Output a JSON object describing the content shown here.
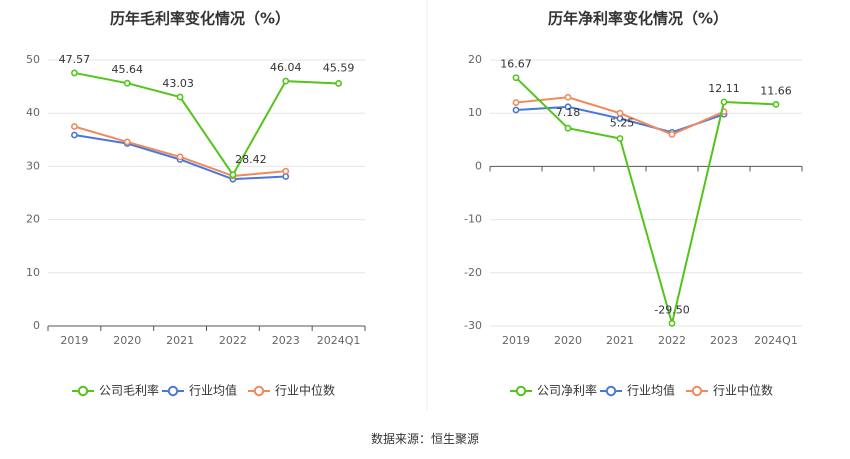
{
  "source_text": "数据来源：恒生聚源",
  "colors": {
    "company": "#52c41a",
    "avg": "#4a78d8",
    "median": "#f08a5d",
    "grid": "#e6e6e6",
    "axis": "#555555"
  },
  "chart_data": [
    {
      "type": "line",
      "title": "历年毛利率变化情况（%）",
      "categories": [
        "2019",
        "2020",
        "2021",
        "2022",
        "2023",
        "2024Q1"
      ],
      "ylim": [
        0,
        50
      ],
      "yticks": [
        0,
        10,
        20,
        30,
        40,
        50
      ],
      "ytick_labels": [
        "0",
        "10",
        "20",
        "30",
        "40",
        "50"
      ],
      "series": [
        {
          "key": "company",
          "name": "公司毛利率",
          "values": [
            47.57,
            45.64,
            43.03,
            28.42,
            46.04,
            45.59
          ],
          "labels": [
            "47.57",
            "45.64",
            "43.03",
            "28.42",
            "46.04",
            "45.59"
          ]
        },
        {
          "key": "avg",
          "name": "行业均值",
          "values": [
            35.9,
            34.3,
            31.3,
            27.6,
            28.1,
            null
          ]
        },
        {
          "key": "median",
          "name": "行业中位数",
          "values": [
            37.5,
            34.6,
            31.8,
            28.2,
            29.1,
            null
          ]
        }
      ]
    },
    {
      "type": "line",
      "title": "历年净利率变化情况（%）",
      "categories": [
        "2019",
        "2020",
        "2021",
        "2022",
        "2023",
        "2024Q1"
      ],
      "ylim": [
        -30,
        20
      ],
      "yticks": [
        -30,
        -20,
        -10,
        0,
        10,
        20
      ],
      "ytick_labels": [
        "-30",
        "-20",
        "-10",
        "0",
        "10",
        "20"
      ],
      "series": [
        {
          "key": "company",
          "name": "公司净利率",
          "values": [
            16.67,
            7.18,
            5.25,
            -29.5,
            12.11,
            11.66
          ],
          "labels": [
            "16.67",
            "7.18",
            "5.25",
            "-29.50",
            "12.11",
            "11.66"
          ]
        },
        {
          "key": "avg",
          "name": "行业均值",
          "values": [
            10.6,
            11.2,
            9.0,
            6.4,
            9.8,
            null
          ]
        },
        {
          "key": "median",
          "name": "行业中位数",
          "values": [
            12.0,
            13.0,
            10.0,
            6.0,
            10.3,
            null
          ]
        }
      ]
    }
  ]
}
